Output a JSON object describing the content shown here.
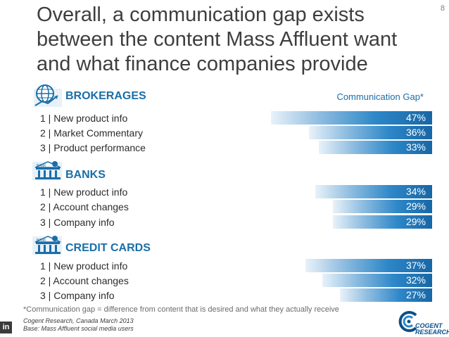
{
  "page_number": "8",
  "title_lines": [
    "Overall, a communication gap exists",
    "between the content Mass Affluent want",
    "and what finance companies provide"
  ],
  "chart_header": "Communication Gap*",
  "chart_data": {
    "type": "bar",
    "orientation": "horizontal",
    "value_unit": "%",
    "groups": [
      {
        "name": "BROKERAGES",
        "icon": "globe-icon",
        "rows": [
          {
            "label": "1 | New product info",
            "value": 47,
            "value_label": "47%"
          },
          {
            "label": "2 | Market Commentary",
            "value": 36,
            "value_label": "36%"
          },
          {
            "label": "3 | Product performance",
            "value": 33,
            "value_label": "33%"
          }
        ]
      },
      {
        "name": "BANKS",
        "icon": "bank-building-icon",
        "rows": [
          {
            "label": "1 | New product info",
            "value": 34,
            "value_label": "34%"
          },
          {
            "label": "2 | Account changes",
            "value": 29,
            "value_label": "29%"
          },
          {
            "label": "3 | Company info",
            "value": 29,
            "value_label": "29%"
          }
        ]
      },
      {
        "name": "CREDIT CARDS",
        "icon": "bank-card-icon",
        "rows": [
          {
            "label": "1 | New product info",
            "value": 37,
            "value_label": "37%"
          },
          {
            "label": "2 | Account changes",
            "value": 32,
            "value_label": "32%"
          },
          {
            "label": "3 | Company info",
            "value": 27,
            "value_label": "27%"
          }
        ]
      }
    ]
  },
  "footnote": "*Communication gap = difference from content that is desired and what they actually receive",
  "source_lines": [
    "Cogent Research, Canada March 2013",
    "Base: Mass Affluent social media users"
  ],
  "icon_text": {
    "bank": "BANK",
    "linkedin": "in"
  },
  "logo": {
    "line1": "COGENT",
    "line2": "RESEARCH"
  },
  "colors": {
    "accent": "#1a6ea8",
    "bar_dark": "#1866a5",
    "bar_light": "#e9f2f9"
  }
}
